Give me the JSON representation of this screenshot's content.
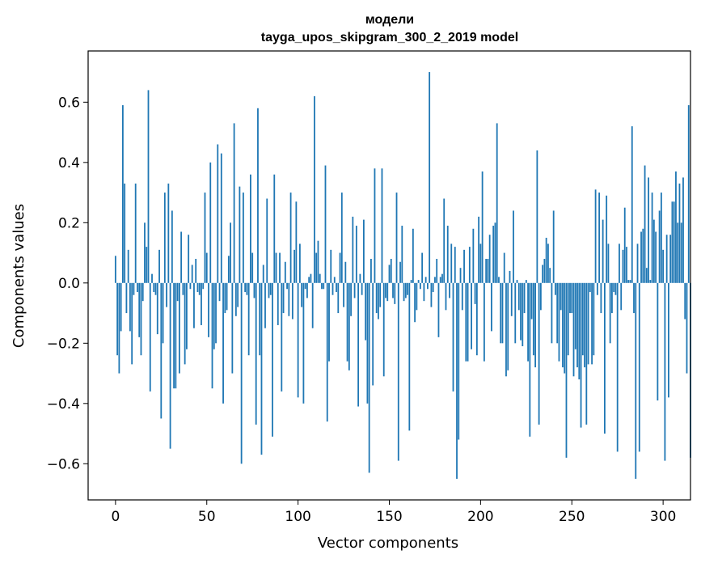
{
  "chart_data": {
    "type": "bar",
    "title_lines": [
      "модели",
      "tayga_upos_skipgram_300_2_2019 model"
    ],
    "xlabel": "Vector components",
    "ylabel": "Components values",
    "xlim": [
      -15,
      315
    ],
    "ylim": [
      -0.72,
      0.77
    ],
    "xticks": [
      0,
      50,
      100,
      150,
      200,
      250,
      300
    ],
    "yticks": [
      -0.6,
      -0.4,
      -0.2,
      0.0,
      0.2,
      0.4,
      0.6
    ],
    "ytick_labels": [
      "−0.6",
      "−0.4",
      "−0.2",
      "0.0",
      "0.2",
      "0.4",
      "0.6"
    ],
    "bar_color": "#1f77b4",
    "grid": false,
    "values": [
      0.09,
      -0.24,
      -0.3,
      -0.16,
      0.59,
      0.33,
      -0.1,
      0.11,
      -0.16,
      -0.27,
      -0.04,
      0.33,
      -0.03,
      -0.18,
      -0.24,
      -0.06,
      0.2,
      0.12,
      0.64,
      -0.36,
      0.03,
      -0.03,
      -0.04,
      -0.17,
      0.11,
      -0.45,
      -0.2,
      0.3,
      -0.08,
      0.33,
      -0.55,
      0.24,
      -0.35,
      -0.35,
      -0.06,
      -0.3,
      0.17,
      -0.04,
      -0.27,
      -0.22,
      0.16,
      -0.02,
      0.06,
      -0.15,
      0.08,
      -0.03,
      -0.04,
      -0.14,
      -0.02,
      0.3,
      0.1,
      -0.18,
      0.4,
      -0.35,
      -0.22,
      -0.2,
      0.46,
      -0.06,
      0.43,
      -0.4,
      -0.1,
      -0.09,
      0.09,
      0.2,
      -0.3,
      0.53,
      -0.11,
      -0.08,
      0.32,
      -0.6,
      0.3,
      -0.03,
      -0.04,
      -0.24,
      0.36,
      0.1,
      -0.05,
      -0.47,
      0.58,
      -0.24,
      -0.57,
      0.06,
      -0.15,
      0.28,
      -0.05,
      -0.04,
      -0.51,
      0.36,
      0.1,
      -0.14,
      0.1,
      -0.36,
      -0.1,
      0.07,
      -0.02,
      -0.11,
      0.3,
      -0.12,
      0.11,
      0.27,
      -0.38,
      0.13,
      -0.08,
      -0.4,
      -0.02,
      -0.05,
      0.02,
      0.03,
      -0.15,
      0.62,
      0.1,
      0.14,
      0.03,
      -0.02,
      -0.02,
      0.39,
      -0.46,
      -0.26,
      0.11,
      -0.04,
      0.02,
      -0.03,
      -0.1,
      0.1,
      0.3,
      -0.08,
      0.07,
      -0.26,
      -0.29,
      -0.11,
      0.22,
      -0.05,
      0.19,
      -0.41,
      0.03,
      -0.04,
      0.21,
      -0.19,
      -0.4,
      -0.63,
      0.08,
      -0.34,
      0.38,
      -0.1,
      -0.12,
      -0.08,
      0.38,
      -0.31,
      -0.05,
      -0.06,
      0.06,
      0.08,
      -0.05,
      -0.07,
      0.3,
      -0.59,
      0.07,
      0.19,
      -0.06,
      -0.05,
      -0.04,
      -0.49,
      0.01,
      0.18,
      -0.13,
      -0.09,
      0.01,
      -0.02,
      0.1,
      -0.06,
      0.02,
      -0.02,
      0.7,
      -0.08,
      -0.03,
      0.02,
      0.08,
      -0.18,
      0.02,
      0.03,
      0.28,
      -0.09,
      0.19,
      -0.05,
      0.13,
      -0.36,
      0.12,
      -0.65,
      -0.52,
      0.05,
      -0.09,
      0.11,
      -0.26,
      -0.26,
      0.12,
      -0.22,
      0.18,
      -0.07,
      -0.24,
      0.22,
      0.13,
      0.37,
      -0.26,
      0.08,
      0.08,
      0.16,
      -0.16,
      0.19,
      0.2,
      0.53,
      0.02,
      -0.2,
      -0.2,
      0.1,
      -0.31,
      -0.29,
      0.04,
      -0.11,
      0.24,
      -0.2,
      0.01,
      -0.09,
      -0.19,
      -0.21,
      -0.1,
      0.01,
      -0.26,
      -0.51,
      -0.12,
      -0.24,
      -0.28,
      0.44,
      -0.47,
      -0.09,
      0.06,
      0.08,
      0.15,
      0.13,
      0.05,
      -0.2,
      0.24,
      -0.04,
      -0.2,
      -0.26,
      -0.09,
      -0.28,
      -0.3,
      -0.58,
      -0.24,
      -0.1,
      -0.1,
      -0.31,
      -0.22,
      -0.28,
      -0.32,
      -0.48,
      -0.24,
      -0.28,
      -0.47,
      -0.27,
      -0.03,
      -0.27,
      -0.24,
      0.31,
      -0.04,
      0.3,
      -0.1,
      0.21,
      -0.5,
      0.29,
      0.13,
      -0.2,
      -0.1,
      -0.03,
      -0.04,
      -0.56,
      0.13,
      -0.09,
      0.11,
      0.25,
      0.12,
      0.01,
      0.01,
      0.52,
      -0.1,
      -0.65,
      0.13,
      -0.56,
      0.17,
      0.18,
      0.39,
      0.05,
      0.35,
      0.01,
      0.3,
      0.21,
      0.17,
      -0.39,
      0.24,
      0.3,
      0.11,
      -0.59,
      0.16,
      -0.38,
      0.16,
      0.27,
      0.27,
      0.37,
      0.2,
      0.33,
      0.2,
      0.35,
      -0.12,
      -0.3,
      0.59,
      -0.58
    ]
  }
}
